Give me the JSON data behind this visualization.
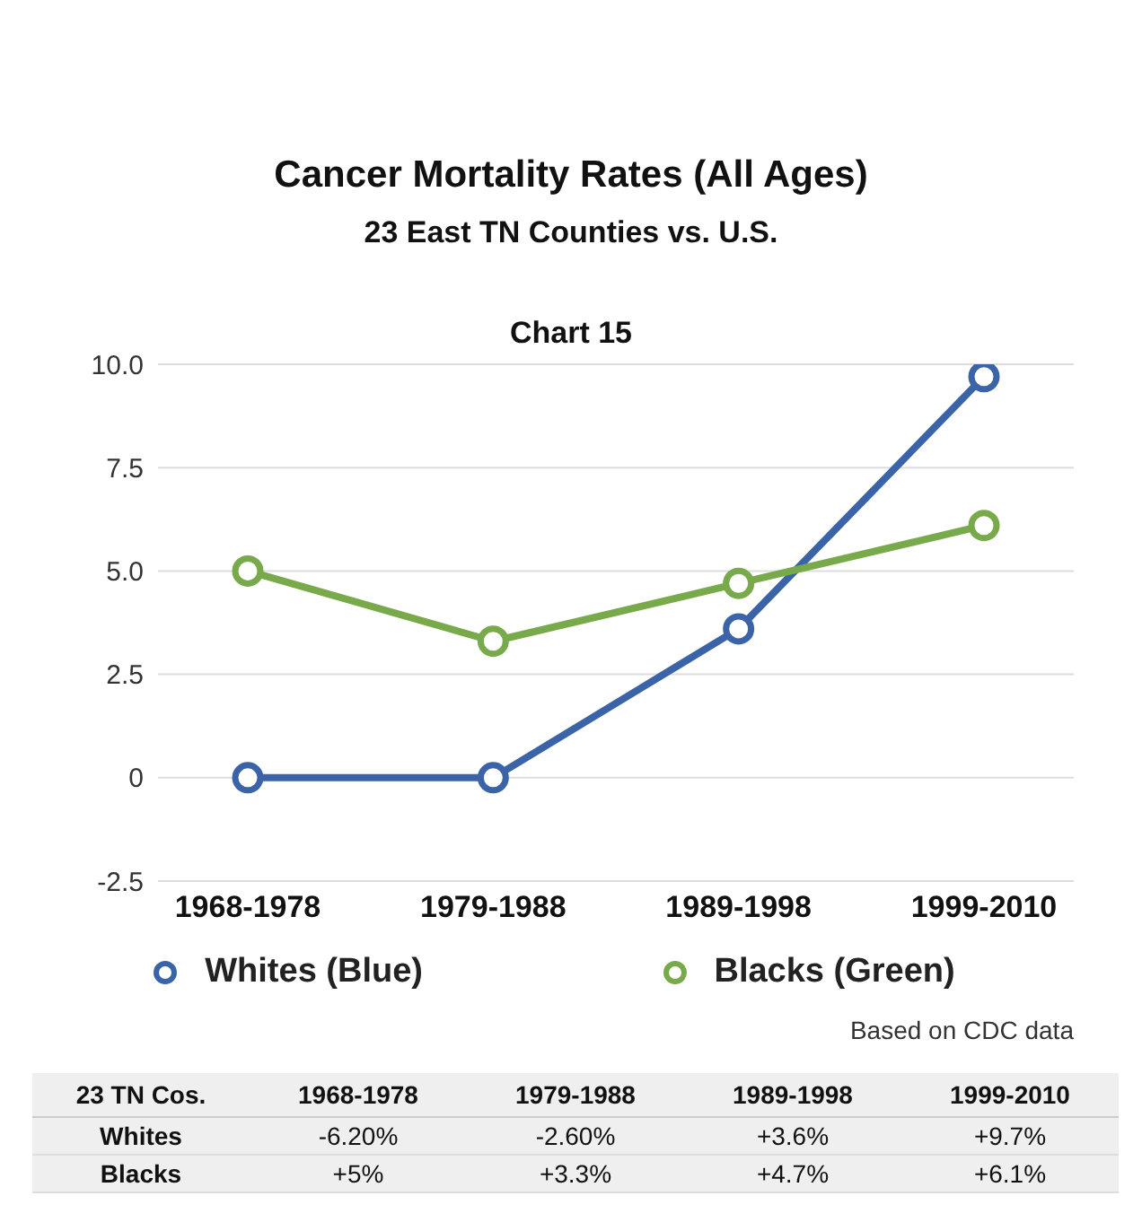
{
  "chart_data": {
    "type": "line",
    "title": "Cancer Mortality Rates (All Ages)",
    "subtitle": "23 East TN Counties vs. U.S.",
    "annotations": [
      "Chart 15",
      "Based on CDC data",
      "23 TN Cos.",
      "Whites",
      "Blacks",
      "-6.20%",
      "-2.60%",
      "+3.6%",
      "+9.7%",
      "+5%",
      "+3.3%",
      "+4.7%",
      "+6.1%"
    ],
    "categories": [
      "1968-1978",
      "1979-1988",
      "1989-1998",
      "1999-2010"
    ],
    "series": [
      {
        "name": "Whites (Blue)",
        "color": "#3b64a8",
        "values": [
          0,
          0,
          3.6,
          9.7
        ]
      },
      {
        "name": "Blacks (Green)",
        "color": "#78a94a",
        "values": [
          5,
          3.3,
          4.7,
          6.1
        ]
      }
    ],
    "ylim": [
      -2.5,
      10
    ],
    "yticks": [
      {
        "value": -2.5,
        "label": "-2.5"
      },
      0,
      {
        "value": 2.5,
        "label": "2.5"
      },
      {
        "value": 5,
        "label": "5.0"
      },
      {
        "value": 7.5,
        "label": "7.5"
      },
      {
        "value": 10,
        "label": "10.0"
      }
    ],
    "grid": "y",
    "legend": "bottom",
    "marker": "circle",
    "line_style": "solid"
  }
}
